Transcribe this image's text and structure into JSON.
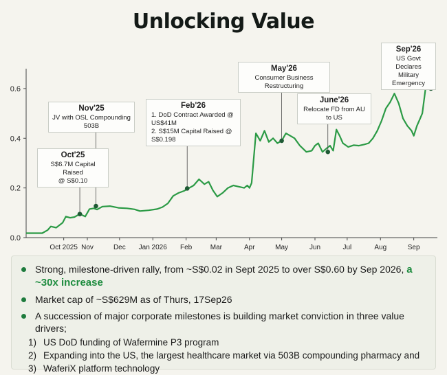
{
  "title": "Unlocking Value",
  "colors": {
    "line": "#2b9a45",
    "marker": "#1f5a35",
    "accent": "#1e8c3f"
  },
  "chart_data": {
    "type": "line",
    "title": "Unlocking Value",
    "xlabel": "",
    "ylabel": "",
    "x_tick_labels": [
      "Oct 2025",
      "Nov",
      "Dec",
      "Jan 2026",
      "Feb",
      "Mar",
      "Apr",
      "May",
      "Jun",
      "Jul",
      "Aug",
      "Sep"
    ],
    "ylim": [
      0,
      0.68
    ],
    "y_ticks": [
      0.0,
      0.2,
      0.4,
      0.6
    ],
    "y_tick_labels": [
      "0.0",
      "0.2",
      "0.4",
      "0.6"
    ],
    "grid": false,
    "series": [
      {
        "values": [
          [
            "2025-09-05",
            0.018
          ],
          [
            "2025-09-20",
            0.018
          ],
          [
            "2025-09-25",
            0.03
          ],
          [
            "2025-09-28",
            0.045
          ],
          [
            "2025-10-03",
            0.04
          ],
          [
            "2025-10-06",
            0.05
          ],
          [
            "2025-10-09",
            0.06
          ],
          [
            "2025-10-12",
            0.085
          ],
          [
            "2025-10-16",
            0.08
          ],
          [
            "2025-10-20",
            0.083
          ],
          [
            "2025-10-25",
            0.095
          ],
          [
            "2025-10-30",
            0.085
          ],
          [
            "2025-11-03",
            0.115
          ],
          [
            "2025-11-07",
            0.118
          ],
          [
            "2025-11-10",
            0.113
          ],
          [
            "2025-11-15",
            0.125
          ],
          [
            "2025-11-22",
            0.127
          ],
          [
            "2025-11-30",
            0.12
          ],
          [
            "2025-12-08",
            0.118
          ],
          [
            "2025-12-15",
            0.114
          ],
          [
            "2025-12-20",
            0.107
          ],
          [
            "2025-12-28",
            0.11
          ],
          [
            "2026-01-05",
            0.115
          ],
          [
            "2026-01-10",
            0.123
          ],
          [
            "2026-01-15",
            0.138
          ],
          [
            "2026-01-20",
            0.168
          ],
          [
            "2026-01-25",
            0.18
          ],
          [
            "2026-01-30",
            0.188
          ],
          [
            "2026-02-03",
            0.198
          ],
          [
            "2026-02-08",
            0.21
          ],
          [
            "2026-02-13",
            0.235
          ],
          [
            "2026-02-18",
            0.215
          ],
          [
            "2026-02-22",
            0.225
          ],
          [
            "2026-02-26",
            0.19
          ],
          [
            "2026-03-02",
            0.165
          ],
          [
            "2026-03-07",
            0.18
          ],
          [
            "2026-03-12",
            0.2
          ],
          [
            "2026-03-17",
            0.21
          ],
          [
            "2026-03-22",
            0.205
          ],
          [
            "2026-03-27",
            0.2
          ],
          [
            "2026-03-30",
            0.21
          ],
          [
            "2026-04-01",
            0.2
          ],
          [
            "2026-04-03",
            0.22
          ],
          [
            "2026-04-07",
            0.42
          ],
          [
            "2026-04-11",
            0.39
          ],
          [
            "2026-04-15",
            0.43
          ],
          [
            "2026-04-19",
            0.385
          ],
          [
            "2026-04-23",
            0.4
          ],
          [
            "2026-04-27",
            0.38
          ],
          [
            "2026-05-01",
            0.39
          ],
          [
            "2026-05-05",
            0.42
          ],
          [
            "2026-05-09",
            0.41
          ],
          [
            "2026-05-13",
            0.4
          ],
          [
            "2026-05-18",
            0.37
          ],
          [
            "2026-05-24",
            0.345
          ],
          [
            "2026-05-29",
            0.35
          ],
          [
            "2026-06-01",
            0.37
          ],
          [
            "2026-06-04",
            0.38
          ],
          [
            "2026-06-08",
            0.345
          ],
          [
            "2026-06-12",
            0.36
          ],
          [
            "2026-06-15",
            0.37
          ],
          [
            "2026-06-18",
            0.35
          ],
          [
            "2026-06-21",
            0.435
          ],
          [
            "2026-06-24",
            0.41
          ],
          [
            "2026-06-27",
            0.38
          ],
          [
            "2026-07-02",
            0.365
          ],
          [
            "2026-07-07",
            0.372
          ],
          [
            "2026-07-12",
            0.37
          ],
          [
            "2026-07-17",
            0.375
          ],
          [
            "2026-07-21",
            0.38
          ],
          [
            "2026-07-25",
            0.4
          ],
          [
            "2026-07-29",
            0.43
          ],
          [
            "2026-08-02",
            0.47
          ],
          [
            "2026-08-06",
            0.52
          ],
          [
            "2026-08-10",
            0.545
          ],
          [
            "2026-08-14",
            0.58
          ],
          [
            "2026-08-18",
            0.54
          ],
          [
            "2026-08-22",
            0.48
          ],
          [
            "2026-08-26",
            0.45
          ],
          [
            "2026-08-30",
            0.43
          ],
          [
            "2026-09-01",
            0.41
          ],
          [
            "2026-09-04",
            0.45
          ],
          [
            "2026-09-07",
            0.48
          ],
          [
            "2026-09-09",
            0.5
          ],
          [
            "2026-09-12",
            0.6
          ],
          [
            "2026-09-15",
            0.62
          ],
          [
            "2026-09-17",
            0.63
          ]
        ]
      }
    ],
    "annotations": [
      {
        "date": "2025-10-25",
        "value": 0.095,
        "label": "Oct'25",
        "lines": [
          "S$6.7M Capital Raised",
          "@ S$0.10"
        ]
      },
      {
        "date": "2025-11-09",
        "value": 0.127,
        "label": "Nov'25",
        "lines": [
          "JV with OSL Compounding 503B"
        ]
      },
      {
        "date": "2026-02-02",
        "value": 0.198,
        "label": "Feb'26",
        "lines": [
          "1. DoD Contract Awarded @ US$41M",
          "2. S$15M Capital Raised @ S$0.198"
        ]
      },
      {
        "date": "2026-05-01",
        "value": 0.39,
        "label": "May'26",
        "lines": [
          "Consumer Business Restructuring"
        ]
      },
      {
        "date": "2026-06-13",
        "value": 0.345,
        "label": "June'26",
        "lines": [
          "Relocate FD from AU to US"
        ]
      },
      {
        "date": "2026-09-17",
        "value": 0.6,
        "label": "Sep'26",
        "lines": [
          "US Govt Declares",
          "Military Emergency"
        ]
      }
    ]
  },
  "summary": {
    "bullets": [
      {
        "text": "Strong, milestone-driven rally, from ~S$0.02 in Sept 2025 to over S$0.60 by Sep 2026,",
        "highlight": "a ~30x increase"
      },
      {
        "text": "Market cap of ~S$629M as of Thurs, 17Sep26"
      },
      {
        "text": "A succession of major corporate milestones is building market conviction in three value drivers;"
      }
    ],
    "sub_items": [
      {
        "num": "1)",
        "text": "US DoD funding of Wafermine P3 program"
      },
      {
        "num": "2)",
        "text": "Expanding into the US, the largest healthcare market via 503B compounding pharmacy and"
      },
      {
        "num": "3)",
        "text": "WaferiX platform technology"
      }
    ]
  }
}
